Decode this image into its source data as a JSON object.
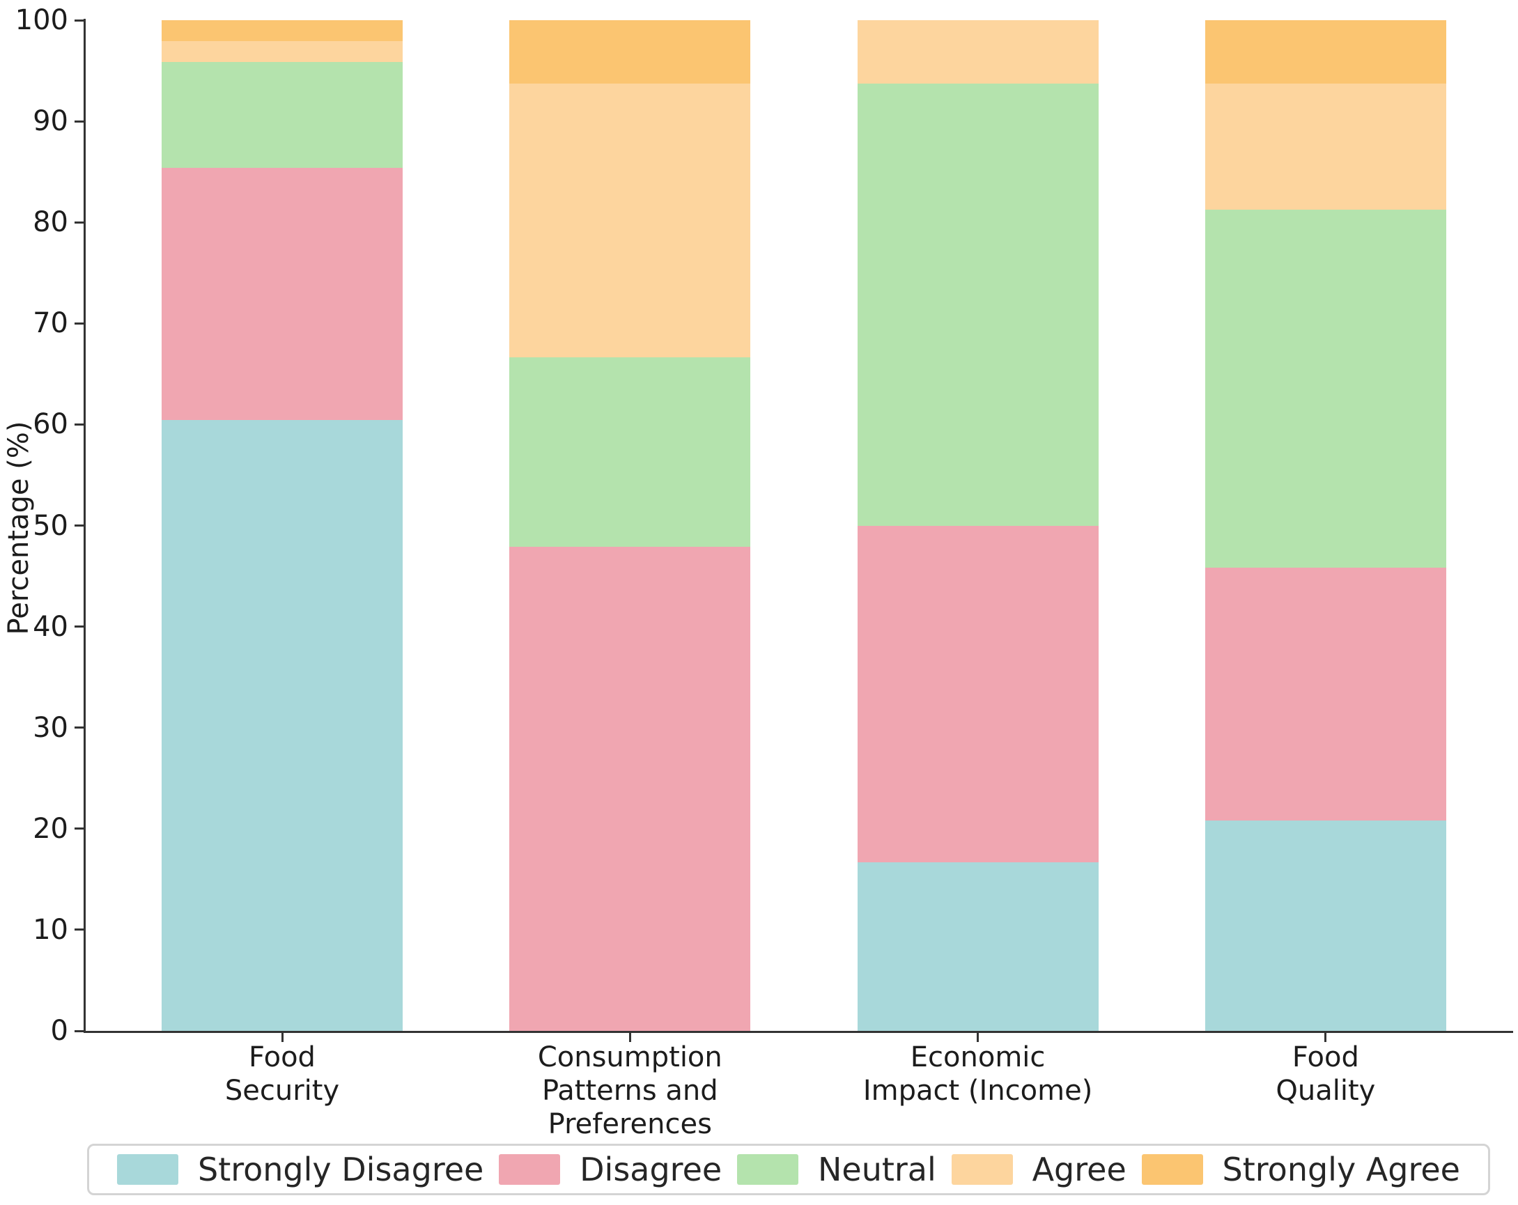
{
  "chart_data": {
    "type": "bar",
    "stacked": true,
    "orientation": "vertical",
    "title": "",
    "xlabel": "",
    "ylabel": "Percentage (%)",
    "ylim": [
      0,
      100
    ],
    "yticks": [
      0,
      10,
      20,
      30,
      40,
      50,
      60,
      70,
      80,
      90,
      100
    ],
    "grid": false,
    "legend_position": "bottom",
    "categories": [
      "Food\nSecurity",
      "Consumption\nPatterns and\nPreferences",
      "Economic\nImpact (Income)",
      "Food\nQuality"
    ],
    "series": [
      {
        "name": "Strongly Disagree",
        "color": "#a8d8da",
        "values": [
          60.42,
          0.0,
          16.67,
          20.83
        ]
      },
      {
        "name": "Disagree",
        "color": "#f0a6b1",
        "values": [
          25.0,
          47.92,
          33.33,
          25.0
        ]
      },
      {
        "name": "Neutral",
        "color": "#b4e3ad",
        "values": [
          10.42,
          18.75,
          43.75,
          35.42
        ]
      },
      {
        "name": "Agree",
        "color": "#fdd59e",
        "values": [
          2.08,
          27.08,
          6.25,
          12.5
        ]
      },
      {
        "name": "Strongly Agree",
        "color": "#fbc571",
        "values": [
          2.08,
          6.25,
          0.0,
          6.25
        ]
      }
    ]
  }
}
